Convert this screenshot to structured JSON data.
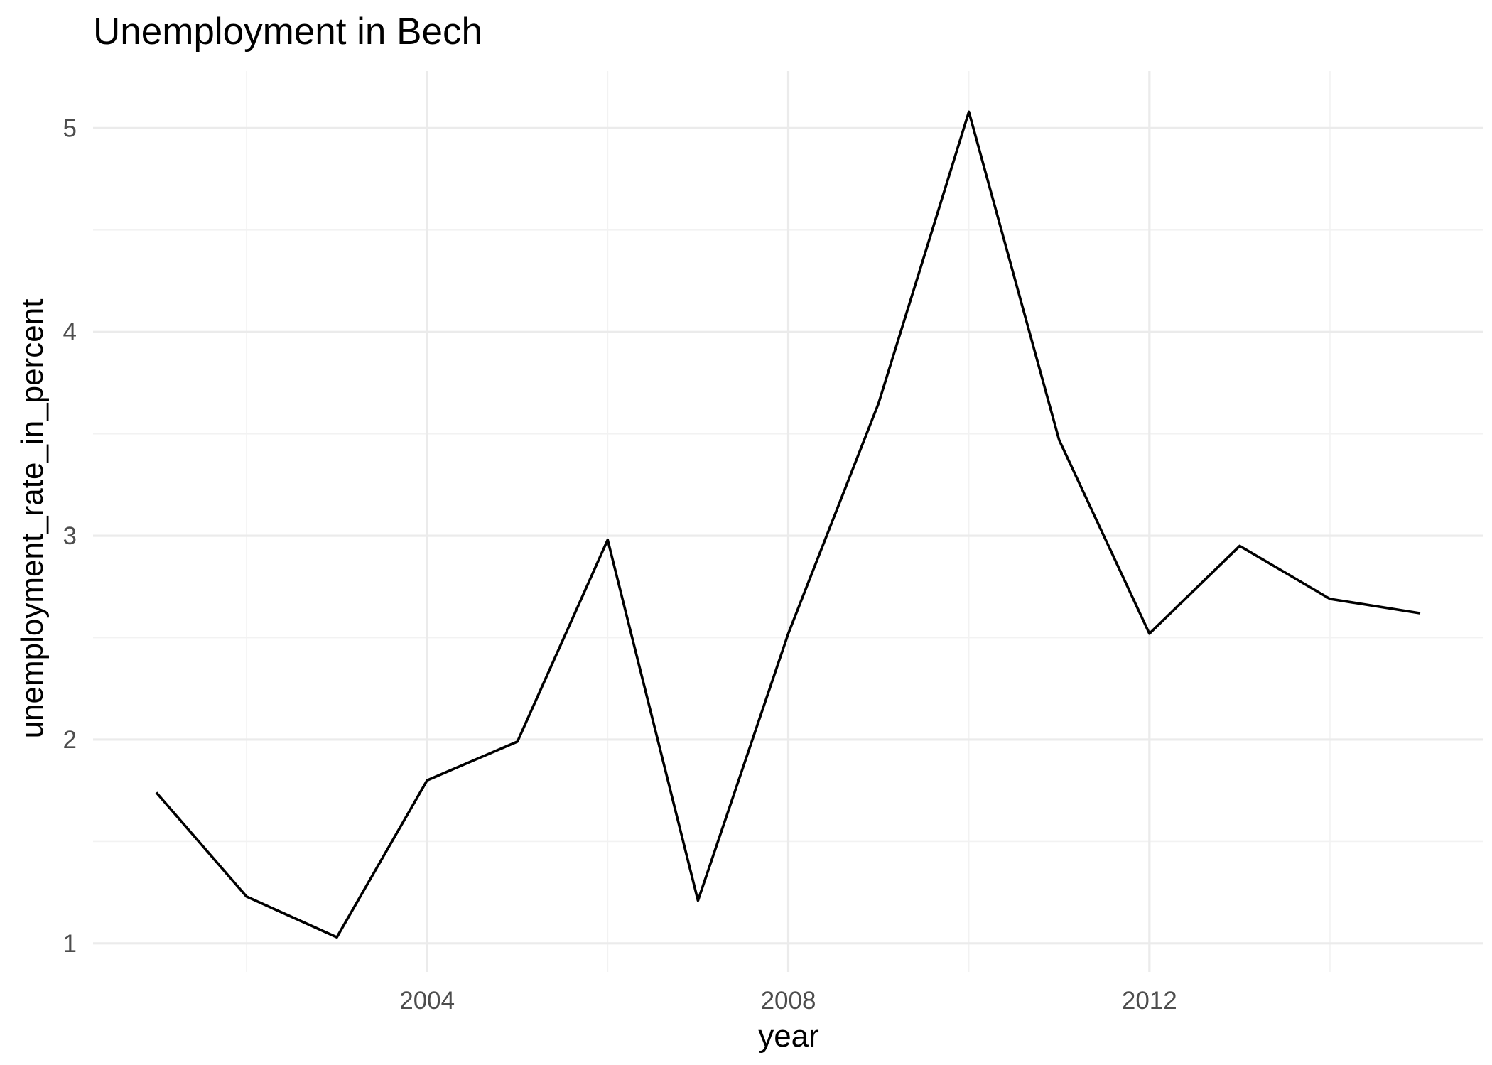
{
  "chart_data": {
    "type": "line",
    "title": "Unemployment in Bech",
    "xlabel": "year",
    "ylabel": "unemployment_rate_in_percent",
    "xlim": [
      2000.3,
      2015.7
    ],
    "ylim": [
      0.86,
      5.28
    ],
    "x_ticks": [
      2004,
      2008,
      2012
    ],
    "x_tick_labels": [
      "2004",
      "2008",
      "2012"
    ],
    "x_minor_ticks": [
      2002,
      2006,
      2010,
      2014
    ],
    "y_ticks": [
      1,
      2,
      3,
      4,
      5
    ],
    "y_tick_labels": [
      "1",
      "2",
      "3",
      "4",
      "5"
    ],
    "y_minor_ticks": [
      1.5,
      2.5,
      3.5,
      4.5
    ],
    "grid": true,
    "legend": "none",
    "line_color": "#000000",
    "x": [
      2001,
      2002,
      2003,
      2004,
      2005,
      2006,
      2007,
      2008,
      2009,
      2010,
      2011,
      2012,
      2013,
      2014,
      2015
    ],
    "values": [
      1.74,
      1.23,
      1.03,
      1.8,
      1.99,
      2.98,
      1.21,
      2.52,
      3.65,
      5.08,
      3.47,
      2.52,
      2.95,
      2.69,
      2.62
    ]
  }
}
